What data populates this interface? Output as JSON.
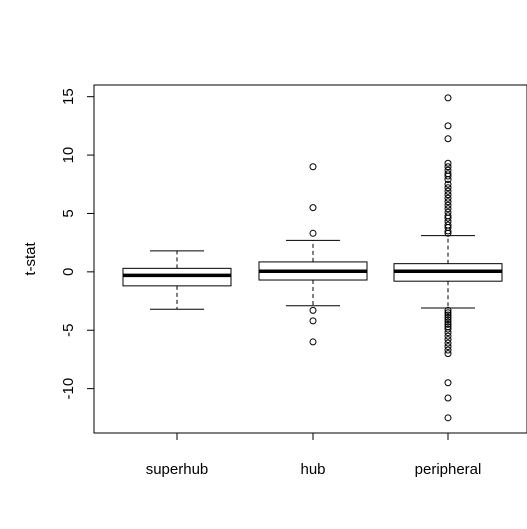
{
  "chart_data": {
    "type": "boxplot",
    "title": "",
    "xlabel": "",
    "ylabel": "t-stat",
    "ylim": [
      -13.8,
      16
    ],
    "yticks": [
      -10,
      -5,
      0,
      5,
      10,
      15
    ],
    "ytick_labels": [
      "-10",
      "-5",
      "0",
      "5",
      "10",
      "15"
    ],
    "grid": false,
    "categories": [
      "superhub",
      "hub",
      "peripheral"
    ],
    "boxes": [
      {
        "name": "superhub",
        "whisker_low": -3.2,
        "q1": -1.2,
        "median": -0.3,
        "q3": 0.3,
        "whisker_high": 1.8,
        "outliers": []
      },
      {
        "name": "hub",
        "whisker_low": -2.9,
        "q1": -0.7,
        "median": 0.05,
        "q3": 0.85,
        "whisker_high": 2.7,
        "outliers": [
          9.0,
          5.5,
          3.3,
          -3.3,
          -4.2,
          -6.0
        ]
      },
      {
        "name": "peripheral",
        "whisker_low": -3.1,
        "q1": -0.8,
        "median": 0.05,
        "q3": 0.7,
        "whisker_high": 3.1,
        "outliers": [
          14.9,
          12.5,
          11.4,
          9.3,
          9.0,
          8.7,
          8.4,
          8.2,
          7.9,
          7.5,
          7.2,
          6.9,
          6.6,
          6.3,
          6.0,
          5.7,
          5.4,
          5.1,
          4.8,
          4.6,
          4.3,
          4.0,
          3.8,
          3.5,
          3.3,
          -3.3,
          -3.5,
          -3.7,
          -3.9,
          -4.1,
          -4.3,
          -4.5,
          -4.7,
          -4.9,
          -5.2,
          -5.5,
          -5.8,
          -6.1,
          -6.4,
          -6.7,
          -7.0,
          -9.5,
          -10.8,
          -12.5
        ]
      }
    ]
  }
}
